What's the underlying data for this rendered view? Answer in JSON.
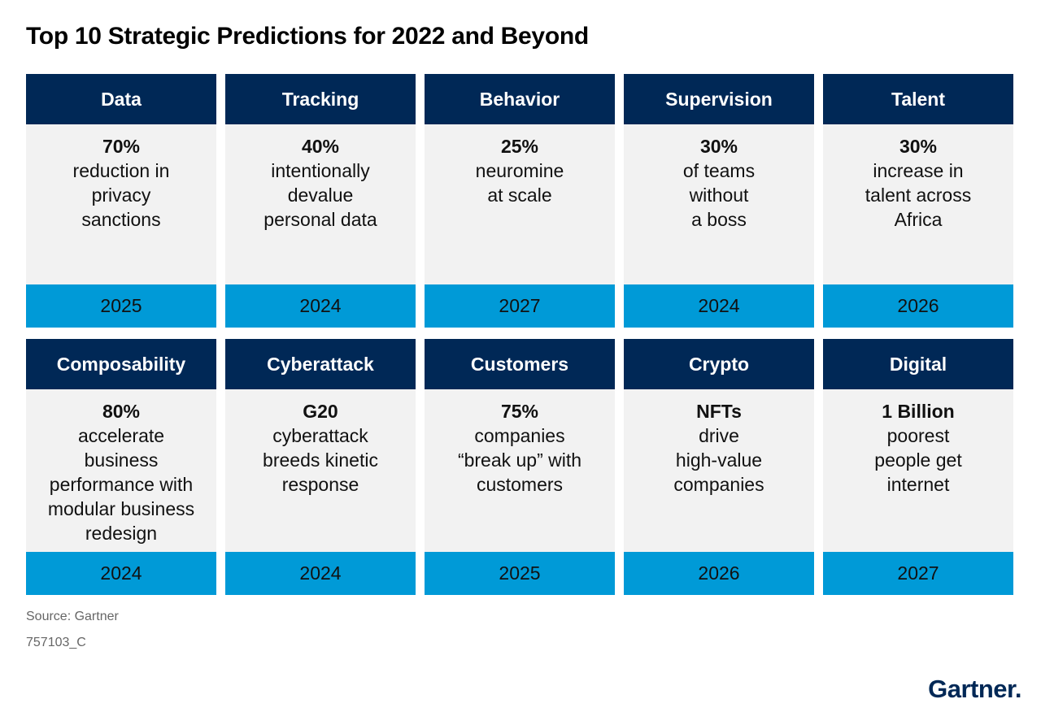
{
  "title": "Top 10 Strategic Predictions for 2022 and Beyond",
  "cards": [
    {
      "category": "Data",
      "stat": "70%",
      "desc": "reduction in\nprivacy\nsanctions",
      "year": "2025"
    },
    {
      "category": "Tracking",
      "stat": "40%",
      "desc": "intentionally\ndevalue\npersonal data",
      "year": "2024"
    },
    {
      "category": "Behavior",
      "stat": "25%",
      "desc": "neuromine\nat scale",
      "year": "2027"
    },
    {
      "category": "Supervision",
      "stat": "30%",
      "desc": "of teams\nwithout\na boss",
      "year": "2024"
    },
    {
      "category": "Talent",
      "stat": "30%",
      "desc": "increase in\ntalent across\nAfrica",
      "year": "2026"
    },
    {
      "category": "Composability",
      "stat": "80%",
      "desc": "accelerate\nbusiness\nperformance with\nmodular business\nredesign",
      "year": "2024"
    },
    {
      "category": "Cyberattack",
      "stat": "G20",
      "desc": "cyberattack\nbreeds kinetic\nresponse",
      "year": "2024"
    },
    {
      "category": "Customers",
      "stat": "75%",
      "desc": "companies\n“break up” with\ncustomers",
      "year": "2025"
    },
    {
      "category": "Crypto",
      "stat": "NFTs",
      "desc": "drive\nhigh-value\ncompanies",
      "year": "2026"
    },
    {
      "category": "Digital",
      "stat": "1 Billion",
      "desc": "poorest\npeople get\ninternet",
      "year": "2027"
    }
  ],
  "source": "Source: Gartner",
  "code": "757103_C",
  "logo": "Gartner.",
  "colors": {
    "header_bg": "#002856",
    "year_bg": "#009ad7",
    "body_bg": "#f2f2f2"
  }
}
